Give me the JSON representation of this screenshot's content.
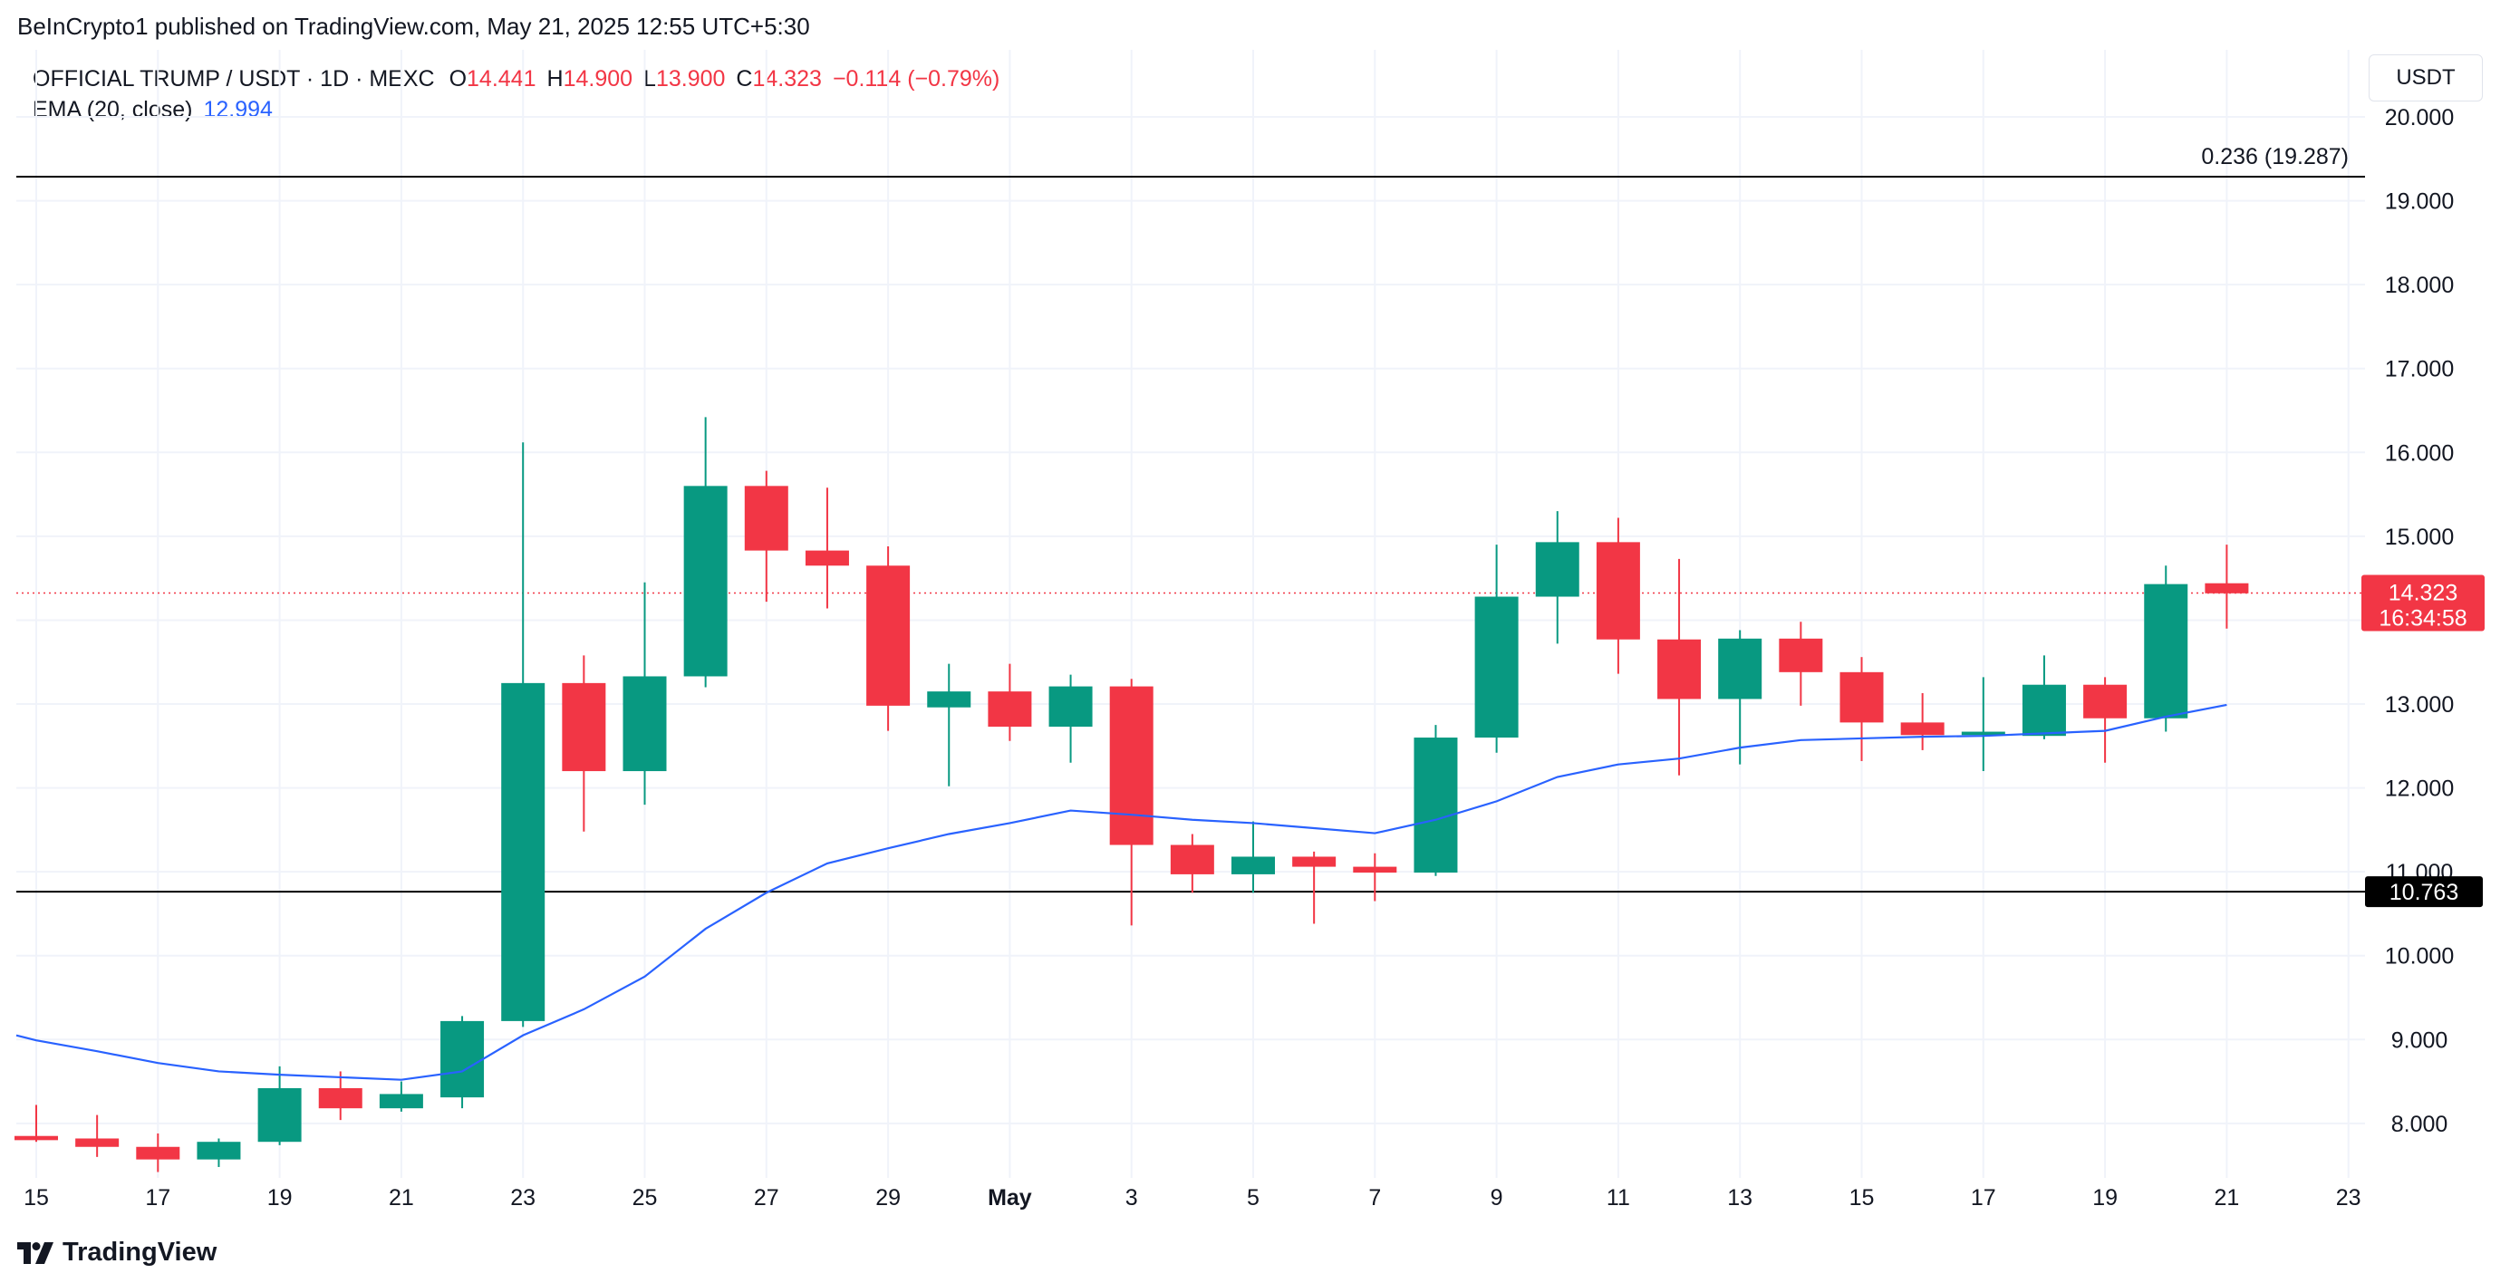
{
  "publisher": "BeInCrypto1 published on TradingView.com, May 21, 2025 12:55 UTC+5:30",
  "brand": "TradingView",
  "currency_button": "USDT",
  "legend": {
    "symbol": "OFFICIAL TRUMP / USDT · 1D · MEXC",
    "o_label": "O",
    "o_value": "14.441",
    "h_label": "H",
    "h_value": "14.900",
    "l_label": "L",
    "l_value": "13.900",
    "c_label": "C",
    "c_value": "14.323",
    "change": "−0.114 (−0.79%)",
    "ema_label": "EMA (20, close)",
    "ema_value": "12.994"
  },
  "colors": {
    "up": "#089981",
    "down": "#f23645",
    "ema": "#2962ff",
    "grid": "#f0f3fa",
    "level_line": "#000000",
    "text": "#131722"
  },
  "chart_data": {
    "type": "candlestick",
    "title": "OFFICIAL TRUMP / USDT · 1D · MEXC",
    "ylim": [
      7.35,
      20.8
    ],
    "y_ticks": [
      "8.000",
      "9.000",
      "10.000",
      "11.000",
      "12.000",
      "13.000",
      "14.000",
      "15.000",
      "16.000",
      "17.000",
      "18.000",
      "19.000",
      "20.000"
    ],
    "x_ticks": [
      {
        "i": 0,
        "label": "15"
      },
      {
        "i": 2,
        "label": "17"
      },
      {
        "i": 4,
        "label": "19"
      },
      {
        "i": 6,
        "label": "21"
      },
      {
        "i": 8,
        "label": "23"
      },
      {
        "i": 10,
        "label": "25"
      },
      {
        "i": 12,
        "label": "27"
      },
      {
        "i": 14,
        "label": "29"
      },
      {
        "i": 16,
        "label": "May",
        "bold": true
      },
      {
        "i": 18,
        "label": "3"
      },
      {
        "i": 20,
        "label": "5"
      },
      {
        "i": 22,
        "label": "7"
      },
      {
        "i": 24,
        "label": "9"
      },
      {
        "i": 26,
        "label": "11"
      },
      {
        "i": 28,
        "label": "13"
      },
      {
        "i": 30,
        "label": "15"
      },
      {
        "i": 32,
        "label": "17"
      },
      {
        "i": 34,
        "label": "19"
      },
      {
        "i": 36,
        "label": "21"
      },
      {
        "i": 38,
        "label": "23"
      }
    ],
    "candles": [
      {
        "o": 7.85,
        "h": 8.22,
        "l": 7.78,
        "c": 7.8
      },
      {
        "o": 7.82,
        "h": 8.1,
        "l": 7.6,
        "c": 7.72
      },
      {
        "o": 7.72,
        "h": 7.88,
        "l": 7.42,
        "c": 7.57
      },
      {
        "o": 7.57,
        "h": 7.82,
        "l": 7.48,
        "c": 7.78
      },
      {
        "o": 7.78,
        "h": 8.68,
        "l": 7.74,
        "c": 8.42
      },
      {
        "o": 8.42,
        "h": 8.62,
        "l": 8.04,
        "c": 8.18
      },
      {
        "o": 8.18,
        "h": 8.5,
        "l": 8.14,
        "c": 8.35
      },
      {
        "o": 8.31,
        "h": 9.28,
        "l": 8.18,
        "c": 9.22
      },
      {
        "o": 9.22,
        "h": 16.12,
        "l": 9.15,
        "c": 13.25
      },
      {
        "o": 13.25,
        "h": 13.58,
        "l": 11.48,
        "c": 12.2
      },
      {
        "o": 12.2,
        "h": 14.45,
        "l": 11.8,
        "c": 13.33
      },
      {
        "o": 13.33,
        "h": 16.42,
        "l": 13.2,
        "c": 15.6
      },
      {
        "o": 15.6,
        "h": 15.78,
        "l": 14.22,
        "c": 14.83
      },
      {
        "o": 14.83,
        "h": 15.58,
        "l": 14.14,
        "c": 14.65
      },
      {
        "o": 14.65,
        "h": 14.88,
        "l": 12.68,
        "c": 12.98
      },
      {
        "o": 12.96,
        "h": 13.48,
        "l": 12.02,
        "c": 13.15
      },
      {
        "o": 13.15,
        "h": 13.48,
        "l": 12.56,
        "c": 12.73
      },
      {
        "o": 12.73,
        "h": 13.35,
        "l": 12.3,
        "c": 13.21
      },
      {
        "o": 13.21,
        "h": 13.3,
        "l": 10.36,
        "c": 11.32
      },
      {
        "o": 11.32,
        "h": 11.45,
        "l": 10.75,
        "c": 10.97
      },
      {
        "o": 10.97,
        "h": 11.6,
        "l": 10.75,
        "c": 11.18
      },
      {
        "o": 11.18,
        "h": 11.24,
        "l": 10.38,
        "c": 11.06
      },
      {
        "o": 11.06,
        "h": 11.22,
        "l": 10.65,
        "c": 10.99
      },
      {
        "o": 10.99,
        "h": 12.75,
        "l": 10.95,
        "c": 12.6
      },
      {
        "o": 12.6,
        "h": 14.9,
        "l": 12.42,
        "c": 14.28
      },
      {
        "o": 14.28,
        "h": 15.3,
        "l": 13.72,
        "c": 14.93
      },
      {
        "o": 14.93,
        "h": 15.22,
        "l": 13.36,
        "c": 13.77
      },
      {
        "o": 13.77,
        "h": 14.73,
        "l": 12.15,
        "c": 13.06
      },
      {
        "o": 13.06,
        "h": 13.88,
        "l": 12.28,
        "c": 13.78
      },
      {
        "o": 13.78,
        "h": 13.98,
        "l": 12.98,
        "c": 13.38
      },
      {
        "o": 13.38,
        "h": 13.56,
        "l": 12.32,
        "c": 12.78
      },
      {
        "o": 12.78,
        "h": 13.13,
        "l": 12.45,
        "c": 12.63
      },
      {
        "o": 12.63,
        "h": 13.32,
        "l": 12.2,
        "c": 12.67
      },
      {
        "o": 12.62,
        "h": 13.58,
        "l": 12.58,
        "c": 13.23
      },
      {
        "o": 13.23,
        "h": 13.32,
        "l": 12.3,
        "c": 12.83
      },
      {
        "o": 12.83,
        "h": 14.65,
        "l": 12.67,
        "c": 14.43
      },
      {
        "o": 14.44,
        "h": 14.9,
        "l": 13.9,
        "c": 14.32
      }
    ],
    "ema": [
      8.99,
      8.86,
      8.72,
      8.62,
      8.58,
      8.55,
      8.52,
      8.62,
      9.05,
      9.36,
      9.75,
      10.32,
      10.75,
      11.1,
      11.28,
      11.45,
      11.58,
      11.73,
      11.68,
      11.62,
      11.58,
      11.52,
      11.46,
      11.62,
      11.84,
      12.13,
      12.28,
      12.35,
      12.48,
      12.57,
      12.59,
      12.61,
      12.62,
      12.65,
      12.68,
      12.85,
      12.99
    ],
    "fib_line": {
      "value": 19.287,
      "label": "0.236 (19.287)"
    },
    "support_line": {
      "value": 10.763,
      "label": "10.763"
    },
    "last_price": {
      "value": 14.323,
      "label": "14.323",
      "countdown": "16:34:58"
    }
  }
}
